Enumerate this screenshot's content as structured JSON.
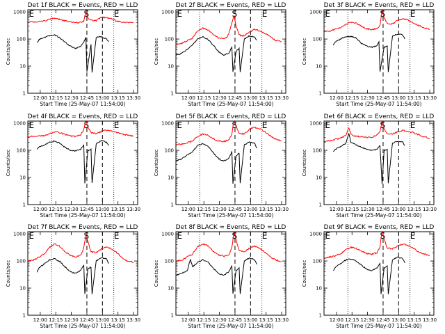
{
  "chart_data": [
    {
      "type": "line",
      "title": "Det 1f BLACK = Events, RED = LLD",
      "xlabel": "Start Time (25-May-07 11:54:00)",
      "ylabel": "Counts/sec",
      "x_ticks": [
        "12:00",
        "12:15",
        "12:30",
        "12:45",
        "13:00",
        "13:15",
        "13:30"
      ],
      "y_ticks": [
        "1",
        "10",
        "100",
        "1000"
      ],
      "ylim": [
        1,
        1000
      ],
      "xlim_min": [
        -6,
        100
      ],
      "log_y": true,
      "markers": [
        "E",
        "S",
        "E"
      ],
      "series": [
        {
          "color": "#ff0000",
          "x": [
            -6,
            0,
            10,
            15,
            20,
            25,
            30,
            35,
            40,
            45,
            48,
            50,
            52,
            55,
            60,
            62,
            65,
            70,
            75,
            80,
            85,
            90,
            96
          ],
          "y": [
            420,
            430,
            460,
            540,
            580,
            520,
            470,
            430,
            400,
            410,
            460,
            950,
            600,
            480,
            470,
            540,
            640,
            620,
            550,
            450,
            420,
            400,
            400
          ]
        },
        {
          "color": "#000000",
          "x": [
            3,
            5,
            10,
            15,
            20,
            25,
            30,
            35,
            40,
            45,
            48,
            50,
            51,
            55,
            56,
            60,
            62,
            65,
            70,
            72
          ],
          "y": [
            70,
            95,
            115,
            135,
            140,
            110,
            75,
            55,
            45,
            55,
            75,
            120,
            6,
            65,
            6,
            110,
            120,
            120,
            100,
            80
          ]
        }
      ]
    },
    {
      "type": "line",
      "title": "Det 2f BLACK = Events, RED = LLD",
      "xlabel": "Start Time (25-May-07 11:54:00)",
      "ylabel": "Counts/sec",
      "x_ticks": [
        "12:00",
        "12:15",
        "12:30",
        "12:45",
        "13:00",
        "13:15",
        "13:30"
      ],
      "y_ticks": [
        "1",
        "10",
        "100",
        "1000"
      ],
      "ylim": [
        1,
        1000
      ],
      "xlim_min": [
        -6,
        100
      ],
      "log_y": true,
      "markers": [
        "E",
        "S",
        "E"
      ],
      "series": [
        {
          "color": "#ff0000",
          "x": [
            -6,
            0,
            10,
            15,
            20,
            25,
            30,
            35,
            40,
            43,
            45,
            48,
            50,
            52,
            55,
            60,
            65,
            70,
            75,
            80,
            85,
            90,
            96
          ],
          "y": [
            60,
            70,
            110,
            200,
            250,
            220,
            150,
            110,
            100,
            115,
            150,
            400,
            700,
            300,
            140,
            130,
            180,
            230,
            200,
            160,
            120,
            90,
            80
          ]
        },
        {
          "color": "#000000",
          "x": [
            -6,
            0,
            10,
            15,
            20,
            25,
            30,
            35,
            40,
            45,
            48,
            49,
            52,
            55,
            56,
            60,
            65,
            70,
            72
          ],
          "y": [
            25,
            30,
            60,
            100,
            120,
            95,
            60,
            35,
            25,
            30,
            50,
            6,
            35,
            45,
            6,
            100,
            130,
            120,
            90
          ]
        }
      ]
    },
    {
      "type": "line",
      "title": "Det 3f BLACK = Events, RED = LLD",
      "xlabel": "Start Time (25-May-07 11:54:00)",
      "ylabel": "Counts/sec",
      "x_ticks": [
        "12:00",
        "12:15",
        "12:30",
        "12:45",
        "13:00",
        "13:15",
        "13:30"
      ],
      "y_ticks": [
        "1",
        "10",
        "100",
        "1000"
      ],
      "ylim": [
        1,
        1000
      ],
      "xlim_min": [
        -6,
        100
      ],
      "log_y": true,
      "markers": [
        "E",
        "S",
        "E"
      ],
      "series": [
        {
          "color": "#ff0000",
          "x": [
            -6,
            0,
            10,
            15,
            20,
            25,
            30,
            35,
            40,
            45,
            48,
            50,
            52,
            55,
            60,
            65,
            70,
            75,
            80,
            85,
            90,
            96
          ],
          "y": [
            190,
            200,
            260,
            350,
            420,
            380,
            300,
            240,
            220,
            240,
            320,
            1100,
            600,
            380,
            360,
            480,
            560,
            500,
            400,
            320,
            260,
            230
          ]
        },
        {
          "color": "#000000",
          "x": [
            3,
            5,
            10,
            15,
            20,
            25,
            30,
            35,
            40,
            45,
            47,
            48,
            52,
            55,
            56,
            60,
            65,
            70,
            72
          ],
          "y": [
            60,
            80,
            100,
            120,
            125,
            110,
            70,
            55,
            50,
            55,
            80,
            6,
            50,
            55,
            6,
            130,
            150,
            140,
            100
          ]
        }
      ]
    },
    {
      "type": "line",
      "title": "Det 4f BLACK = Events, RED = LLD",
      "xlabel": "Start Time (25-May-07 11:54:00)",
      "ylabel": "Counts/sec",
      "x_ticks": [
        "12:00",
        "12:15",
        "12:30",
        "12:45",
        "13:00",
        "13:15",
        "13:30"
      ],
      "y_ticks": [
        "1",
        "10",
        "100",
        "1000"
      ],
      "ylim": [
        1,
        1000
      ],
      "xlim_min": [
        -6,
        100
      ],
      "log_y": true,
      "markers": [
        "E",
        "S",
        "E"
      ],
      "series": [
        {
          "color": "#ff0000",
          "x": [
            -6,
            0,
            10,
            15,
            20,
            25,
            30,
            35,
            40,
            45,
            48,
            50,
            52,
            55,
            60,
            65,
            70,
            75,
            80,
            85,
            90,
            96
          ],
          "y": [
            320,
            330,
            350,
            420,
            480,
            450,
            380,
            340,
            330,
            360,
            600,
            1400,
            700,
            450,
            420,
            500,
            560,
            520,
            460,
            400,
            360,
            340
          ]
        },
        {
          "color": "#000000",
          "x": [
            3,
            5,
            10,
            15,
            20,
            25,
            30,
            35,
            40,
            45,
            48,
            49,
            52,
            55,
            56,
            60,
            65,
            70,
            72
          ],
          "y": [
            110,
            130,
            160,
            200,
            220,
            180,
            130,
            100,
            95,
            110,
            160,
            6,
            100,
            110,
            6,
            180,
            230,
            200,
            150
          ]
        }
      ]
    },
    {
      "type": "line",
      "title": "Det 5f BLACK = Events, RED = LLD",
      "xlabel": "Start Time (25-May-07 11:54:00)",
      "ylabel": "Counts/sec",
      "x_ticks": [
        "12:00",
        "12:15",
        "12:30",
        "12:45",
        "13:00",
        "13:15",
        "13:30"
      ],
      "y_ticks": [
        "1",
        "10",
        "100",
        "1000"
      ],
      "ylim": [
        1,
        1000
      ],
      "xlim_min": [
        -6,
        100
      ],
      "log_y": true,
      "markers": [
        "E",
        "S",
        "E"
      ],
      "series": [
        {
          "color": "#ff0000",
          "x": [
            -6,
            0,
            10,
            15,
            20,
            25,
            30,
            35,
            40,
            45,
            48,
            50,
            52,
            55,
            60,
            65,
            70,
            75,
            80,
            85,
            90,
            96
          ],
          "y": [
            160,
            170,
            220,
            320,
            400,
            360,
            270,
            220,
            210,
            240,
            400,
            1500,
            800,
            420,
            400,
            600,
            700,
            620,
            480,
            350,
            260,
            220
          ]
        },
        {
          "color": "#000000",
          "x": [
            -6,
            0,
            10,
            15,
            20,
            25,
            30,
            35,
            40,
            45,
            48,
            49,
            52,
            55,
            56,
            60,
            65,
            70,
            72
          ],
          "y": [
            40,
            50,
            90,
            150,
            180,
            140,
            80,
            50,
            40,
            50,
            90,
            6,
            60,
            80,
            6,
            160,
            200,
            180,
            120
          ]
        }
      ]
    },
    {
      "type": "line",
      "title": "Det 6f BLACK = Events, RED = LLD",
      "xlabel": "Start Time (25-May-07 11:54:00)",
      "ylabel": "Counts/sec",
      "x_ticks": [
        "12:00",
        "12:15",
        "12:30",
        "12:45",
        "13:00",
        "13:15",
        "13:30"
      ],
      "y_ticks": [
        "1",
        "10",
        "100",
        "1000"
      ],
      "ylim": [
        1,
        1000
      ],
      "xlim_min": [
        -6,
        100
      ],
      "log_y": true,
      "markers": [
        "E",
        "S",
        "E"
      ],
      "series": [
        {
          "color": "#ff0000",
          "x": [
            -6,
            0,
            10,
            15,
            18,
            20,
            25,
            30,
            35,
            40,
            45,
            48,
            50,
            52,
            55,
            60,
            65,
            70,
            75,
            80,
            85,
            90,
            96
          ],
          "y": [
            220,
            230,
            280,
            350,
            700,
            380,
            330,
            320,
            300,
            310,
            360,
            500,
            1100,
            600,
            420,
            400,
            480,
            540,
            500,
            450,
            380,
            320,
            280
          ]
        },
        {
          "color": "#000000",
          "x": [
            3,
            5,
            10,
            15,
            18,
            20,
            25,
            30,
            35,
            40,
            45,
            48,
            50,
            52,
            55,
            56,
            60,
            65,
            70,
            72
          ],
          "y": [
            90,
            110,
            140,
            180,
            400,
            200,
            160,
            130,
            110,
            100,
            110,
            150,
            6,
            100,
            110,
            6,
            180,
            220,
            200,
            150
          ]
        }
      ]
    },
    {
      "type": "line",
      "title": "Det 7f BLACK = Events, RED = LLD",
      "xlabel": "Start Time (25-May-07 11:54:00)",
      "ylabel": "Counts/sec",
      "x_ticks": [
        "12:00",
        "12:15",
        "12:30",
        "12:45",
        "13:00",
        "13:15",
        "13:30"
      ],
      "y_ticks": [
        "1",
        "10",
        "100",
        "1000"
      ],
      "ylim": [
        1,
        1000
      ],
      "xlim_min": [
        -6,
        100
      ],
      "log_y": true,
      "markers": [
        "E",
        "S",
        "E"
      ],
      "series": [
        {
          "color": "#ff0000",
          "x": [
            -6,
            0,
            10,
            15,
            20,
            25,
            30,
            35,
            40,
            45,
            48,
            50,
            52,
            55,
            60,
            65,
            70,
            75,
            80,
            85,
            90,
            96
          ],
          "y": [
            100,
            110,
            180,
            320,
            420,
            340,
            220,
            160,
            140,
            160,
            300,
            900,
            500,
            220,
            200,
            280,
            330,
            280,
            200,
            130,
            100,
            90
          ]
        },
        {
          "color": "#000000",
          "x": [
            3,
            5,
            10,
            15,
            20,
            25,
            30,
            35,
            40,
            45,
            48,
            49,
            52,
            55,
            56,
            60,
            65,
            70,
            72
          ],
          "y": [
            40,
            55,
            80,
            110,
            120,
            95,
            60,
            40,
            35,
            45,
            70,
            6,
            50,
            60,
            6,
            100,
            130,
            120,
            80
          ]
        }
      ]
    },
    {
      "type": "line",
      "title": "Det 8f BLACK = Events, RED = LLD",
      "xlabel": "Start Time (25-May-07 11:54:00)",
      "ylabel": "Counts/sec",
      "x_ticks": [
        "12:00",
        "12:15",
        "12:30",
        "12:45",
        "13:00",
        "13:15",
        "13:30"
      ],
      "y_ticks": [
        "1",
        "10",
        "100",
        "1000"
      ],
      "ylim": [
        1,
        1000
      ],
      "xlim_min": [
        -6,
        100
      ],
      "log_y": true,
      "markers": [
        "E",
        "S",
        "E"
      ],
      "series": [
        {
          "color": "#ff0000",
          "x": [
            -6,
            0,
            10,
            15,
            20,
            25,
            30,
            35,
            40,
            45,
            48,
            50,
            52,
            55,
            60,
            65,
            70,
            75,
            80,
            85,
            90,
            96
          ],
          "y": [
            100,
            110,
            180,
            340,
            430,
            360,
            230,
            170,
            150,
            170,
            320,
            1100,
            600,
            240,
            220,
            300,
            360,
            300,
            210,
            140,
            110,
            95
          ]
        },
        {
          "color": "#000000",
          "x": [
            -6,
            0,
            5,
            8,
            10,
            15,
            20,
            25,
            30,
            35,
            40,
            45,
            48,
            49,
            52,
            55,
            56,
            60,
            65,
            70,
            72
          ],
          "y": [
            30,
            35,
            45,
            120,
            60,
            90,
            110,
            90,
            55,
            35,
            30,
            40,
            65,
            6,
            45,
            55,
            6,
            100,
            130,
            110,
            75
          ]
        }
      ]
    },
    {
      "type": "line",
      "title": "Det 9f BLACK = Events, RED = LLD",
      "xlabel": "Start Time (25-May-07 11:54:00)",
      "ylabel": "Counts/sec",
      "x_ticks": [
        "12:00",
        "12:15",
        "12:30",
        "12:45",
        "13:00",
        "13:15",
        "13:30"
      ],
      "y_ticks": [
        "1",
        "10",
        "100",
        "1000"
      ],
      "ylim": [
        1,
        1000
      ],
      "xlim_min": [
        -6,
        100
      ],
      "log_y": true,
      "markers": [
        "E",
        "S",
        "E"
      ],
      "series": [
        {
          "color": "#ff0000",
          "x": [
            -6,
            0,
            10,
            15,
            20,
            25,
            30,
            35,
            40,
            45,
            48,
            50,
            52,
            55,
            60,
            65,
            70,
            75,
            80,
            85,
            90,
            96
          ],
          "y": [
            130,
            140,
            180,
            260,
            320,
            290,
            230,
            190,
            180,
            200,
            330,
            1300,
            650,
            300,
            280,
            360,
            420,
            380,
            300,
            220,
            180,
            160
          ]
        },
        {
          "color": "#000000",
          "x": [
            3,
            5,
            10,
            15,
            20,
            25,
            30,
            35,
            40,
            45,
            48,
            49,
            52,
            55,
            56,
            60,
            65,
            70,
            72
          ],
          "y": [
            45,
            60,
            80,
            110,
            120,
            100,
            70,
            50,
            45,
            55,
            80,
            6,
            55,
            65,
            6,
            110,
            140,
            120,
            85
          ]
        }
      ]
    }
  ]
}
